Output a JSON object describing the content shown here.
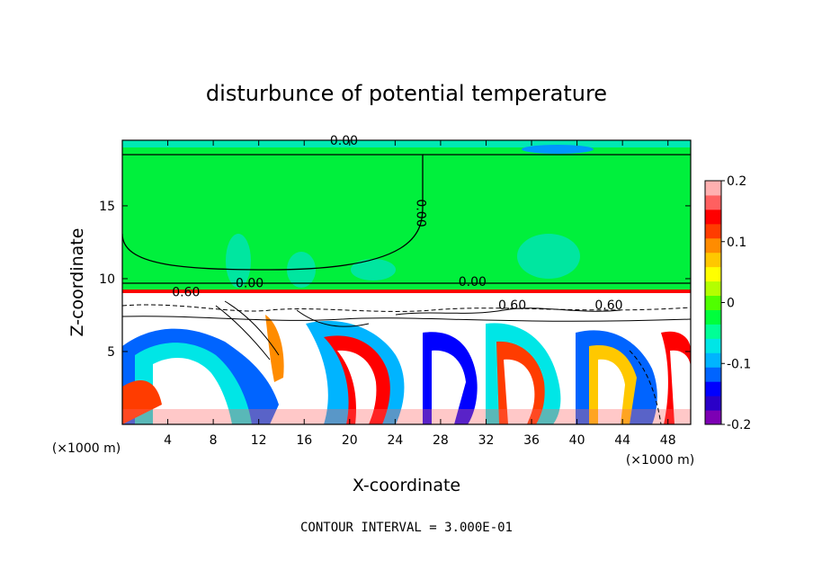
{
  "chart_data": {
    "type": "heatmap",
    "title": "disturbunce of potential temperature",
    "xlabel": "X-coordinate",
    "ylabel": "Z-coordinate",
    "x_unit_left": "(×1000 m)",
    "x_unit_right": "(×1000 m)",
    "xlim": [
      0,
      50
    ],
    "ylim": [
      0,
      19.5
    ],
    "x_ticks": [
      4,
      8,
      12,
      16,
      20,
      24,
      28,
      32,
      36,
      40,
      44,
      48
    ],
    "y_ticks": [
      5,
      10,
      15
    ],
    "colorbar": {
      "range": [
        -0.2,
        0.2
      ],
      "ticks": [
        "0.2",
        "0.1",
        "0",
        "-0.1",
        "-0.2"
      ],
      "colors": [
        "#7d00b4",
        "#2a00c8",
        "#0000ff",
        "#0064ff",
        "#00b4ff",
        "#00e6e6",
        "#00ff96",
        "#00ff3c",
        "#50ff00",
        "#b4ff00",
        "#ffff00",
        "#ffc800",
        "#ff8c00",
        "#ff3c00",
        "#ff0000",
        "#ff6060",
        "#ffb0b0"
      ]
    },
    "contour_labels": [
      "0.00",
      "0.00",
      "0.00",
      "0.00",
      "0.60",
      "0.60",
      "0.60"
    ],
    "footer": "CONTOUR INTERVAL = 3.000E-01"
  }
}
